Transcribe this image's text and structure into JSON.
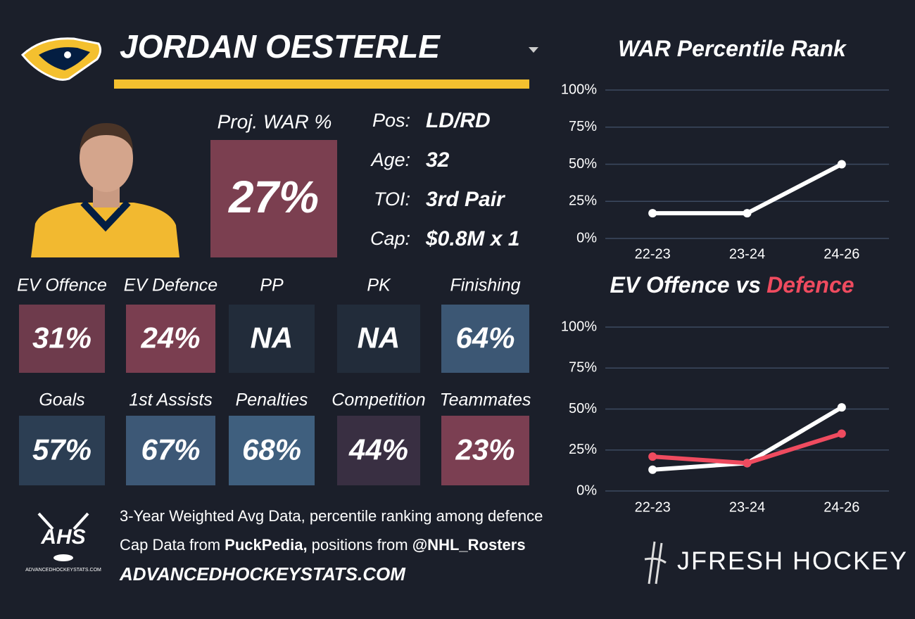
{
  "header": {
    "player_name": "JORDAN OESTERLE"
  },
  "proj_war": {
    "label": "Proj. WAR %",
    "value": "27%",
    "color": "#7b3f50"
  },
  "bio": [
    {
      "label": "Pos:",
      "value": "LD/RD"
    },
    {
      "label": "Age:",
      "value": "32"
    },
    {
      "label": "TOI:",
      "value": "3rd Pair"
    },
    {
      "label": "Cap:",
      "value": "$0.8M x 1"
    }
  ],
  "tiles": [
    {
      "label": "EV Offence",
      "value": "31%",
      "color": "#6e3b4c"
    },
    {
      "label": "EV Defence",
      "value": "24%",
      "color": "#7a3e50"
    },
    {
      "label": "PP",
      "value": "NA",
      "color": "#222c3a"
    },
    {
      "label": "PK",
      "value": "NA",
      "color": "#222c3a"
    },
    {
      "label": "Finishing",
      "value": "64%",
      "color": "#3c5774"
    },
    {
      "label": "Goals",
      "value": "57%",
      "color": "#2c3e53"
    },
    {
      "label": "1st Assists",
      "value": "67%",
      "color": "#3d5876"
    },
    {
      "label": "Penalties",
      "value": "68%",
      "color": "#3f5f7e"
    },
    {
      "label": "Competition",
      "value": "44%",
      "color": "#392f42"
    },
    {
      "label": "Teammates",
      "value": "23%",
      "color": "#7b3f52"
    }
  ],
  "footer": {
    "line1": "3-Year Weighted Avg Data, percentile ranking among defence",
    "line2": [
      {
        "text": "Cap Data from ",
        "bold": false
      },
      {
        "text": "PuckPedia,",
        "bold": true
      },
      {
        "text": " positions from ",
        "bold": false
      },
      {
        "text": "@NHL_Rosters",
        "bold": true
      }
    ],
    "website": "ADVANCEDHOCKEYSTATS.COM",
    "ahs_logo": "AHS",
    "ahs_logo_sub": "ADVANCEDHOCKEYSTATS.COM",
    "brand": "JFRESH HOCKEY"
  },
  "chart_data": [
    {
      "type": "line",
      "title": "WAR Percentile Rank",
      "categories": [
        "22-23",
        "23-24",
        "24-26"
      ],
      "series": [
        {
          "color": "#ffffff",
          "values": [
            17,
            17,
            50
          ]
        }
      ],
      "ylim": [
        0,
        100
      ],
      "yticks": [
        {
          "value": 0,
          "label": "0%"
        },
        {
          "value": 25,
          "label": "25%"
        },
        {
          "value": 50,
          "label": "50%"
        },
        {
          "value": 75,
          "label": "75%"
        },
        {
          "value": 100,
          "label": "100%"
        }
      ],
      "grid": true
    },
    {
      "type": "line",
      "title": "EV Offence vs",
      "title_highlight": "Defence",
      "title_highlight_color": "#ef4b5f",
      "categories": [
        "22-23",
        "23-24",
        "24-26"
      ],
      "series": [
        {
          "color": "#ffffff",
          "values": [
            13,
            17,
            51
          ]
        },
        {
          "color": "#ef4b5f",
          "values": [
            21,
            17,
            35
          ]
        }
      ],
      "ylim": [
        0,
        100
      ],
      "yticks": [
        {
          "value": 0,
          "label": "0%"
        },
        {
          "value": 25,
          "label": "25%"
        },
        {
          "value": 50,
          "label": "50%"
        },
        {
          "value": 75,
          "label": "75%"
        },
        {
          "value": 100,
          "label": "100%"
        }
      ],
      "grid": true
    }
  ]
}
